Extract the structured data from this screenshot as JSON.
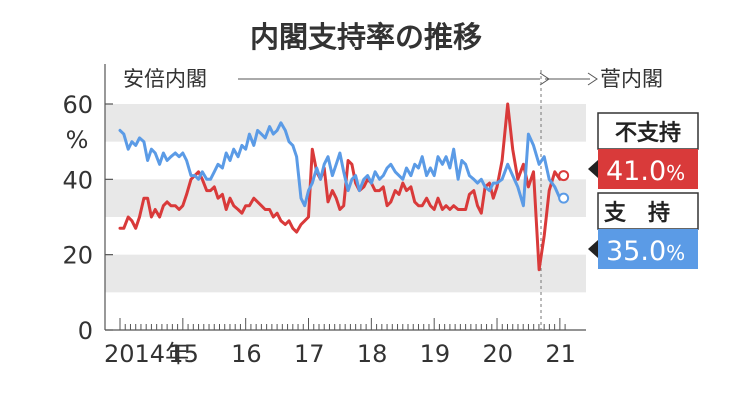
{
  "chart_data": {
    "type": "line",
    "title": "内閣支持率の推移",
    "y_unit": "%",
    "ylim": [
      0,
      60
    ],
    "y_ticks": [
      "0",
      "20",
      "40",
      "60"
    ],
    "x_tick_labels": [
      "2014年",
      "15",
      "16",
      "17",
      "18",
      "19",
      "20",
      "21"
    ],
    "grid_bands": true,
    "eras": [
      {
        "label": "安倍内閣",
        "from": 2014.0,
        "to": 2020.7
      },
      {
        "label": "菅内閣",
        "from": 2020.7,
        "to": 2021.1
      }
    ],
    "series": [
      {
        "name": "不支持",
        "color": "#d93a3a",
        "final_value": "41.0",
        "final_unit": "%",
        "x": [
          2014.0,
          2014.06,
          2014.13,
          2014.19,
          2014.25,
          2014.31,
          2014.38,
          2014.44,
          2014.5,
          2014.56,
          2014.63,
          2014.69,
          2014.75,
          2014.81,
          2014.88,
          2014.94,
          2015.0,
          2015.06,
          2015.13,
          2015.19,
          2015.25,
          2015.31,
          2015.38,
          2015.44,
          2015.5,
          2015.56,
          2015.63,
          2015.69,
          2015.75,
          2015.81,
          2015.88,
          2015.94,
          2016.0,
          2016.06,
          2016.13,
          2016.19,
          2016.25,
          2016.31,
          2016.38,
          2016.44,
          2016.5,
          2016.56,
          2016.63,
          2016.69,
          2016.75,
          2016.81,
          2016.88,
          2016.94,
          2017.0,
          2017.06,
          2017.13,
          2017.19,
          2017.25,
          2017.31,
          2017.38,
          2017.44,
          2017.5,
          2017.56,
          2017.63,
          2017.69,
          2017.75,
          2017.81,
          2017.88,
          2017.94,
          2018.0,
          2018.06,
          2018.13,
          2018.19,
          2018.25,
          2018.31,
          2018.38,
          2018.44,
          2018.5,
          2018.56,
          2018.63,
          2018.69,
          2018.75,
          2018.81,
          2018.88,
          2018.94,
          2019.0,
          2019.06,
          2019.13,
          2019.19,
          2019.25,
          2019.31,
          2019.38,
          2019.44,
          2019.5,
          2019.56,
          2019.63,
          2019.69,
          2019.75,
          2019.81,
          2019.88,
          2019.94,
          2020.0,
          2020.08,
          2020.17,
          2020.25,
          2020.33,
          2020.42,
          2020.5,
          2020.58,
          2020.67,
          2020.75,
          2020.83,
          2020.92,
          2021.0,
          2021.06
        ],
        "values": [
          27,
          27,
          30,
          29,
          27,
          30,
          35,
          35,
          30,
          32,
          30,
          33,
          34,
          33,
          33,
          32,
          33,
          36,
          40,
          41,
          42,
          40,
          37,
          37,
          38,
          35,
          36,
          32,
          35,
          33,
          32,
          31,
          33,
          33,
          35,
          34,
          33,
          32,
          32,
          30,
          31,
          29,
          28,
          29,
          27,
          26,
          28,
          29,
          30,
          48,
          42,
          40,
          43,
          34,
          37,
          35,
          32,
          33,
          45,
          44,
          39,
          37,
          38,
          40,
          39,
          37,
          37,
          38,
          33,
          34,
          37,
          36,
          39,
          37,
          38,
          34,
          33,
          33,
          35,
          33,
          32,
          35,
          32,
          33,
          32,
          33,
          32,
          32,
          32,
          36,
          37,
          33,
          31,
          38,
          39,
          35,
          38,
          45,
          60,
          48,
          40,
          44,
          38,
          42,
          16,
          25,
          37,
          42,
          40,
          41
        ]
      },
      {
        "name": "支持",
        "color": "#5b9be6",
        "final_value": "35.0",
        "final_unit": "%",
        "x": [
          2014.0,
          2014.06,
          2014.13,
          2014.19,
          2014.25,
          2014.31,
          2014.38,
          2014.44,
          2014.5,
          2014.56,
          2014.63,
          2014.69,
          2014.75,
          2014.81,
          2014.88,
          2014.94,
          2015.0,
          2015.06,
          2015.13,
          2015.19,
          2015.25,
          2015.31,
          2015.38,
          2015.44,
          2015.5,
          2015.56,
          2015.63,
          2015.69,
          2015.75,
          2015.81,
          2015.88,
          2015.94,
          2016.0,
          2016.06,
          2016.13,
          2016.19,
          2016.25,
          2016.31,
          2016.38,
          2016.44,
          2016.5,
          2016.56,
          2016.63,
          2016.69,
          2016.75,
          2016.81,
          2016.88,
          2016.94,
          2017.0,
          2017.06,
          2017.13,
          2017.19,
          2017.25,
          2017.31,
          2017.38,
          2017.44,
          2017.5,
          2017.56,
          2017.63,
          2017.69,
          2017.75,
          2017.81,
          2017.88,
          2017.94,
          2018.0,
          2018.06,
          2018.13,
          2018.19,
          2018.25,
          2018.31,
          2018.38,
          2018.44,
          2018.5,
          2018.56,
          2018.63,
          2018.69,
          2018.75,
          2018.81,
          2018.88,
          2018.94,
          2019.0,
          2019.06,
          2019.13,
          2019.19,
          2019.25,
          2019.31,
          2019.38,
          2019.44,
          2019.5,
          2019.56,
          2019.63,
          2019.69,
          2019.75,
          2019.81,
          2019.88,
          2019.94,
          2020.0,
          2020.08,
          2020.17,
          2020.25,
          2020.33,
          2020.42,
          2020.5,
          2020.58,
          2020.67,
          2020.75,
          2020.83,
          2020.92,
          2021.0,
          2021.06
        ],
        "values": [
          53,
          52,
          48,
          50,
          49,
          51,
          50,
          45,
          48,
          47,
          44,
          47,
          45,
          46,
          47,
          46,
          47,
          45,
          41,
          41,
          40,
          42,
          40,
          40,
          42,
          44,
          43,
          47,
          45,
          48,
          46,
          49,
          48,
          52,
          49,
          53,
          52,
          51,
          54,
          52,
          53,
          55,
          53,
          50,
          49,
          46,
          35,
          33,
          37,
          39,
          43,
          40,
          44,
          46,
          41,
          44,
          47,
          42,
          37,
          40,
          41,
          37,
          40,
          41,
          39,
          42,
          40,
          41,
          43,
          44,
          42,
          41,
          40,
          43,
          41,
          44,
          43,
          46,
          41,
          43,
          41,
          46,
          44,
          46,
          43,
          48,
          40,
          45,
          44,
          41,
          40,
          39,
          40,
          38,
          37,
          39,
          39,
          40,
          44,
          41,
          38,
          33,
          52,
          49,
          44,
          46,
          40,
          38,
          35,
          35
        ]
      }
    ]
  }
}
